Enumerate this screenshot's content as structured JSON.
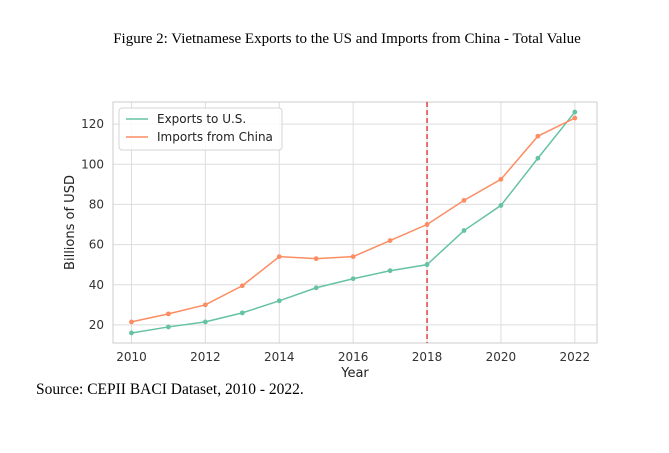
{
  "figure_title": "Figure 2: Vietnamese Exports to the US and Imports from China - Total Value",
  "source": "Source: CEPII BACI Dataset, 2010 - 2022.",
  "colors": {
    "exports": "#66c2a5",
    "imports": "#fc8d62",
    "marker_line": "#d62728",
    "grid": "#dddddd",
    "frame": "#cccccc"
  },
  "chart_data": {
    "type": "line",
    "title": "Figure 2: Vietnamese Exports to the US and Imports from China - Total Value",
    "xlabel": "Year",
    "ylabel": "Billions of USD",
    "x": [
      2010,
      2011,
      2012,
      2013,
      2014,
      2015,
      2016,
      2017,
      2018,
      2019,
      2020,
      2021,
      2022
    ],
    "xlim": [
      2009.5,
      2022.6
    ],
    "ylim": [
      11,
      131
    ],
    "xticks": [
      2010,
      2012,
      2014,
      2016,
      2018,
      2020,
      2022
    ],
    "yticks": [
      20,
      40,
      60,
      80,
      100,
      120
    ],
    "grid": true,
    "legend_position": "top-left",
    "vertical_marker": {
      "x": 2018,
      "style": "dashed"
    },
    "series": [
      {
        "name": "Exports to U.S.",
        "color_key": "exports",
        "values": [
          16,
          19,
          21.5,
          26,
          32,
          38.5,
          43,
          47,
          50,
          67,
          79.5,
          103,
          126
        ]
      },
      {
        "name": "Imports from China",
        "color_key": "imports",
        "values": [
          21.5,
          25.5,
          30,
          39.5,
          54,
          53,
          54,
          62,
          70,
          82,
          92.5,
          114,
          123
        ]
      }
    ]
  }
}
